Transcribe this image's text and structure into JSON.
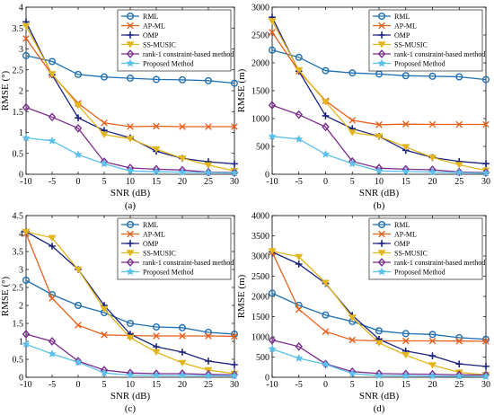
{
  "chart_data": [
    {
      "type": "line",
      "panel_label": "(a)",
      "xlabel": "SNR (dB)",
      "ylabel": "RMSE (°)",
      "xlim": [
        -10,
        30
      ],
      "ylim": [
        0,
        4
      ],
      "x_ticks": [
        -10,
        -5,
        0,
        5,
        10,
        15,
        20,
        25,
        30
      ],
      "y_ticks": [
        0,
        0.5,
        1,
        1.5,
        2,
        2.5,
        3,
        3.5,
        4
      ],
      "y_tick_labels": [
        "0",
        "0.5",
        "1",
        "1.5",
        "2",
        "2.5",
        "3",
        "3.5",
        "4"
      ],
      "legend_position": "top-right",
      "x": [
        -10,
        -5,
        0,
        5,
        10,
        15,
        20,
        25,
        30
      ],
      "series": [
        {
          "name": "RML",
          "values": [
            2.84,
            2.7,
            2.39,
            2.33,
            2.3,
            2.27,
            2.26,
            2.24,
            2.18
          ]
        },
        {
          "name": "AP-ML",
          "values": [
            3.25,
            2.38,
            1.7,
            1.23,
            1.14,
            1.15,
            1.14,
            1.14,
            1.14
          ]
        },
        {
          "name": "OMP",
          "values": [
            3.65,
            2.38,
            1.35,
            1.05,
            0.87,
            0.55,
            0.38,
            0.3,
            0.25
          ]
        },
        {
          "name": "SS-MUSIC",
          "values": [
            3.55,
            2.4,
            1.65,
            0.95,
            0.85,
            0.6,
            0.38,
            0.22,
            0.08
          ]
        },
        {
          "name": "rank-1 constraint-based method",
          "values": [
            1.6,
            1.37,
            1.1,
            0.3,
            0.15,
            0.12,
            0.1,
            0.05,
            0.04
          ]
        },
        {
          "name": "Proposed Method",
          "values": [
            0.87,
            0.8,
            0.47,
            0.25,
            0.08,
            0.06,
            0.05,
            0.04,
            0.03
          ]
        }
      ]
    },
    {
      "type": "line",
      "panel_label": "(b)",
      "xlabel": "SNR (dB)",
      "ylabel": "RMSE (m)",
      "xlim": [
        -10,
        30
      ],
      "ylim": [
        0,
        3000
      ],
      "x_ticks": [
        -10,
        -5,
        0,
        5,
        10,
        15,
        20,
        25,
        30
      ],
      "y_ticks": [
        0,
        500,
        1000,
        1500,
        2000,
        2500,
        3000
      ],
      "y_tick_labels": [
        "0",
        "500",
        "1000",
        "1500",
        "2000",
        "2500",
        "3000"
      ],
      "legend_position": "top-right",
      "x": [
        -10,
        -5,
        0,
        5,
        10,
        15,
        20,
        25,
        30
      ],
      "series": [
        {
          "name": "RML",
          "values": [
            2230,
            2100,
            1860,
            1820,
            1800,
            1770,
            1760,
            1750,
            1700
          ]
        },
        {
          "name": "AP-ML",
          "values": [
            2550,
            1850,
            1320,
            970,
            890,
            900,
            895,
            895,
            895
          ]
        },
        {
          "name": "OMP",
          "values": [
            2820,
            1850,
            1050,
            820,
            680,
            430,
            300,
            230,
            190
          ]
        },
        {
          "name": "SS-MUSIC",
          "values": [
            2750,
            1870,
            1300,
            750,
            680,
            490,
            300,
            170,
            70
          ]
        },
        {
          "name": "rank-1 constraint-based method",
          "values": [
            1240,
            1070,
            850,
            230,
            110,
            90,
            80,
            40,
            30
          ]
        },
        {
          "name": "Proposed Method",
          "values": [
            680,
            630,
            360,
            190,
            60,
            50,
            40,
            30,
            20
          ]
        }
      ]
    },
    {
      "type": "line",
      "panel_label": "(c)",
      "xlabel": "SNR (dB)",
      "ylabel": "RMSE (°)",
      "xlim": [
        -10,
        30
      ],
      "ylim": [
        0,
        4.5
      ],
      "x_ticks": [
        -10,
        -5,
        0,
        5,
        10,
        15,
        20,
        25,
        30
      ],
      "y_ticks": [
        0,
        0.5,
        1,
        1.5,
        2,
        2.5,
        3,
        3.5,
        4,
        4.5
      ],
      "y_tick_labels": [
        "0",
        "0.5",
        "1",
        "1.5",
        "2",
        "2.5",
        "3",
        "3.5",
        "4",
        "4.5"
      ],
      "legend_position": "top-right",
      "x": [
        -10,
        -5,
        0,
        5,
        10,
        15,
        20,
        25,
        30
      ],
      "series": [
        {
          "name": "RML",
          "values": [
            2.7,
            2.3,
            2.0,
            1.8,
            1.5,
            1.4,
            1.38,
            1.25,
            1.2
          ]
        },
        {
          "name": "AP-ML",
          "values": [
            4.0,
            2.2,
            1.45,
            1.18,
            1.16,
            1.15,
            1.15,
            1.15,
            1.14
          ]
        },
        {
          "name": "OMP",
          "values": [
            4.05,
            3.65,
            3.0,
            2.0,
            1.2,
            0.85,
            0.7,
            0.45,
            0.35
          ]
        },
        {
          "name": "SS-MUSIC",
          "values": [
            4.05,
            3.88,
            3.0,
            1.9,
            1.1,
            0.7,
            0.4,
            0.2,
            0.1
          ]
        },
        {
          "name": "rank-1 constraint-based method",
          "values": [
            1.2,
            1.0,
            0.45,
            0.2,
            0.12,
            0.1,
            0.1,
            0.08,
            0.07
          ]
        },
        {
          "name": "Proposed Method",
          "values": [
            0.92,
            0.65,
            0.42,
            0.12,
            0.06,
            0.05,
            0.05,
            0.04,
            0.04
          ]
        }
      ]
    },
    {
      "type": "line",
      "panel_label": "(d)",
      "xlabel": "SNR (dB)",
      "ylabel": "RMSE (m)",
      "xlim": [
        -10,
        30
      ],
      "ylim": [
        0,
        4000
      ],
      "x_ticks": [
        -10,
        -5,
        0,
        5,
        10,
        15,
        20,
        25,
        30
      ],
      "y_ticks": [
        0,
        500,
        1000,
        1500,
        2000,
        2500,
        3000,
        3500,
        4000
      ],
      "y_tick_labels": [
        "0",
        "500",
        "1000",
        "1500",
        "2000",
        "2500",
        "3000",
        "3500",
        "4000"
      ],
      "legend_position": "top-right",
      "x": [
        -10,
        -5,
        0,
        5,
        10,
        15,
        20,
        25,
        30
      ],
      "series": [
        {
          "name": "RML",
          "values": [
            2080,
            1780,
            1540,
            1380,
            1150,
            1080,
            1060,
            980,
            940
          ]
        },
        {
          "name": "AP-ML",
          "values": [
            3100,
            1680,
            1130,
            920,
            900,
            900,
            900,
            895,
            890
          ]
        },
        {
          "name": "OMP",
          "values": [
            3100,
            2800,
            2320,
            1530,
            940,
            650,
            530,
            330,
            270
          ]
        },
        {
          "name": "SS-MUSIC",
          "values": [
            3120,
            2980,
            2340,
            1480,
            850,
            550,
            300,
            120,
            60
          ]
        },
        {
          "name": "rank-1 constraint-based method",
          "values": [
            920,
            760,
            330,
            140,
            90,
            80,
            75,
            60,
            55
          ]
        },
        {
          "name": "Proposed Method",
          "values": [
            700,
            470,
            320,
            90,
            40,
            35,
            30,
            25,
            20
          ]
        }
      ]
    }
  ],
  "style": {
    "series_colors": [
      "#1f6fb2",
      "#e8601c",
      "#1a237e",
      "#e3b51c",
      "#7b2d8e",
      "#5bc0eb"
    ],
    "series_markers": [
      "circle",
      "x",
      "plus",
      "triangle-down",
      "diamond",
      "star"
    ]
  }
}
